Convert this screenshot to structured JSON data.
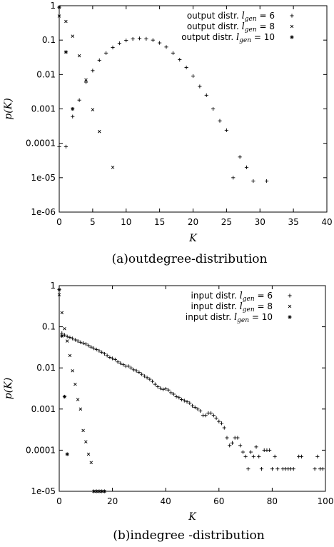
{
  "chart_data": [
    {
      "type": "scatter",
      "caption": "(a)outdegree-distribution",
      "xlabel": "K",
      "ylabel": "p(K)",
      "xlim": [
        0,
        40
      ],
      "ylim": [
        1e-06,
        1
      ],
      "yscale": "log",
      "grid": false,
      "legend_position": "top-right",
      "xticks": [
        "0",
        "5",
        "10",
        "15",
        "20",
        "25",
        "30",
        "35",
        "40"
      ],
      "yticks": [
        "1",
        "0.1",
        "0.01",
        "0.001",
        "0.0001",
        "1e-05",
        "1e-06"
      ],
      "series": [
        {
          "name": "output distr. l_gen = 6",
          "legend_label": "output distr.",
          "legend_var": "l",
          "legend_sub": "gen",
          "legend_eq": " = 6",
          "marker": "+",
          "points": [
            [
              0,
              8e-05
            ],
            [
              1,
              8e-05
            ],
            [
              2,
              0.0006
            ],
            [
              3,
              0.0018
            ],
            [
              4,
              0.006
            ],
            [
              5,
              0.013
            ],
            [
              6,
              0.026
            ],
            [
              7,
              0.042
            ],
            [
              8,
              0.061
            ],
            [
              9,
              0.081
            ],
            [
              10,
              0.098
            ],
            [
              11,
              0.108
            ],
            [
              12,
              0.112
            ],
            [
              13,
              0.109
            ],
            [
              14,
              0.1
            ],
            [
              15,
              0.083
            ],
            [
              16,
              0.063
            ],
            [
              17,
              0.042
            ],
            [
              18,
              0.027
            ],
            [
              19,
              0.016
            ],
            [
              20,
              0.009
            ],
            [
              21,
              0.0045
            ],
            [
              22,
              0.0025
            ],
            [
              23,
              0.001
            ],
            [
              24,
              0.00045
            ],
            [
              25,
              0.00024
            ],
            [
              26,
              1e-05
            ],
            [
              27,
              4e-05
            ],
            [
              28,
              2e-05
            ],
            [
              29,
              8e-06
            ],
            [
              31,
              8e-06
            ]
          ]
        },
        {
          "name": "output distr. l_gen = 8",
          "legend_label": "output distr.",
          "legend_var": "l",
          "legend_sub": "gen",
          "legend_eq": " = 8",
          "marker": "x",
          "points": [
            [
              0,
              0.5
            ],
            [
              1,
              0.35
            ],
            [
              2,
              0.13
            ],
            [
              3,
              0.035
            ],
            [
              4,
              0.007
            ],
            [
              5,
              0.00095
            ],
            [
              6,
              0.00022
            ],
            [
              8,
              2e-05
            ]
          ]
        },
        {
          "name": "output distr. l_gen = 10",
          "legend_label": "output distr.",
          "legend_var": "l",
          "legend_sub": "gen",
          "legend_eq": " = 10",
          "marker": "*",
          "points": [
            [
              0,
              0.9
            ],
            [
              1,
              0.045
            ],
            [
              2,
              0.001
            ]
          ]
        }
      ]
    },
    {
      "type": "scatter",
      "caption": "(b)indegree -distribution",
      "xlabel": "K",
      "ylabel": "p(K)",
      "xlim": [
        0,
        100
      ],
      "ylim": [
        1e-05,
        1
      ],
      "yscale": "log",
      "grid": false,
      "legend_position": "top-right",
      "xticks": [
        "0",
        "20",
        "40",
        "60",
        "80",
        "100"
      ],
      "yticks": [
        "1",
        "0.1",
        "0.01",
        "0.001",
        "0.0001",
        "1e-05"
      ],
      "series": [
        {
          "name": "input distr. l_gen = 6",
          "legend_label": "input distr.",
          "legend_var": "l",
          "legend_sub": "gen",
          "legend_eq": " = 6",
          "marker": "+",
          "points": [
            [
              1,
              0.07
            ],
            [
              2,
              0.063
            ],
            [
              3,
              0.058
            ],
            [
              4,
              0.055
            ],
            [
              5,
              0.052
            ],
            [
              6,
              0.048
            ],
            [
              7,
              0.045
            ],
            [
              8,
              0.042
            ],
            [
              9,
              0.04
            ],
            [
              10,
              0.038
            ],
            [
              11,
              0.035
            ],
            [
              12,
              0.032
            ],
            [
              13,
              0.03
            ],
            [
              14,
              0.028
            ],
            [
              15,
              0.026
            ],
            [
              16,
              0.024
            ],
            [
              17,
              0.022
            ],
            [
              18,
              0.02
            ],
            [
              19,
              0.018
            ],
            [
              20,
              0.017
            ],
            [
              21,
              0.016
            ],
            [
              22,
              0.014
            ],
            [
              23,
              0.013
            ],
            [
              24,
              0.012
            ],
            [
              25,
              0.011
            ],
            [
              26,
              0.011
            ],
            [
              27,
              0.01
            ],
            [
              28,
              0.009
            ],
            [
              29,
              0.0085
            ],
            [
              30,
              0.0078
            ],
            [
              31,
              0.007
            ],
            [
              32,
              0.0063
            ],
            [
              33,
              0.0058
            ],
            [
              34,
              0.0053
            ],
            [
              35,
              0.0047
            ],
            [
              36,
              0.004
            ],
            [
              37,
              0.0035
            ],
            [
              38,
              0.0032
            ],
            [
              39,
              0.003
            ],
            [
              40,
              0.0031
            ],
            [
              41,
              0.0029
            ],
            [
              42,
              0.0025
            ],
            [
              43,
              0.0023
            ],
            [
              44,
              0.002
            ],
            [
              45,
              0.0019
            ],
            [
              46,
              0.0017
            ],
            [
              47,
              0.0016
            ],
            [
              48,
              0.0015
            ],
            [
              49,
              0.0014
            ],
            [
              50,
              0.0012
            ],
            [
              51,
              0.0011
            ],
            [
              52,
              0.001
            ],
            [
              53,
              0.0009
            ],
            [
              54,
              0.0007
            ],
            [
              55,
              0.0007
            ],
            [
              56,
              0.0008
            ],
            [
              57,
              0.0008
            ],
            [
              58,
              0.0007
            ],
            [
              59,
              0.0006
            ],
            [
              60,
              0.0005
            ],
            [
              61,
              0.00045
            ],
            [
              62,
              0.00035
            ],
            [
              63,
              0.0002
            ],
            [
              64,
              0.00013
            ],
            [
              65,
              0.00015
            ],
            [
              66,
              0.0002
            ],
            [
              67,
              0.0002
            ],
            [
              68,
              0.00013
            ],
            [
              69,
              9e-05
            ],
            [
              70,
              7e-05
            ],
            [
              71,
              3.5e-05
            ],
            [
              72,
              9e-05
            ],
            [
              73,
              7e-05
            ],
            [
              74,
              0.00012
            ],
            [
              75,
              7e-05
            ],
            [
              76,
              3.5e-05
            ],
            [
              77,
              0.0001
            ],
            [
              78,
              0.0001
            ],
            [
              79,
              0.0001
            ],
            [
              80,
              3.5e-05
            ],
            [
              81,
              7e-05
            ],
            [
              82,
              3.5e-05
            ],
            [
              84,
              3.5e-05
            ],
            [
              85,
              3.5e-05
            ],
            [
              86,
              3.5e-05
            ],
            [
              87,
              3.5e-05
            ],
            [
              88,
              3.5e-05
            ],
            [
              90,
              7e-05
            ],
            [
              91,
              7e-05
            ],
            [
              96,
              3.5e-05
            ],
            [
              97,
              7e-05
            ],
            [
              98,
              3.5e-05
            ],
            [
              99,
              3.5e-05
            ]
          ]
        },
        {
          "name": "input distr. l_gen = 8",
          "legend_label": "input distr.",
          "legend_var": "l",
          "legend_sub": "gen",
          "legend_eq": " = 8",
          "marker": "x",
          "points": [
            [
              0,
              0.6
            ],
            [
              1,
              0.22
            ],
            [
              2,
              0.09
            ],
            [
              3,
              0.045
            ],
            [
              4,
              0.02
            ],
            [
              5,
              0.0085
            ],
            [
              6,
              0.004
            ],
            [
              7,
              0.0017
            ],
            [
              8,
              0.001
            ],
            [
              9,
              0.0003
            ],
            [
              10,
              0.00016
            ],
            [
              11,
              8e-05
            ],
            [
              12,
              5e-05
            ]
          ]
        },
        {
          "name": "input distr. l_gen = 10",
          "legend_label": "input distr.",
          "legend_var": "l",
          "legend_sub": "gen",
          "legend_eq": " = 10",
          "marker": "*",
          "points": [
            [
              0,
              0.8
            ],
            [
              1,
              0.06
            ],
            [
              2,
              0.002
            ],
            [
              3,
              8e-05
            ],
            [
              13,
              1e-05
            ],
            [
              14,
              1e-05
            ],
            [
              15,
              1e-05
            ],
            [
              16,
              1e-05
            ],
            [
              17,
              1e-05
            ]
          ]
        }
      ]
    }
  ]
}
